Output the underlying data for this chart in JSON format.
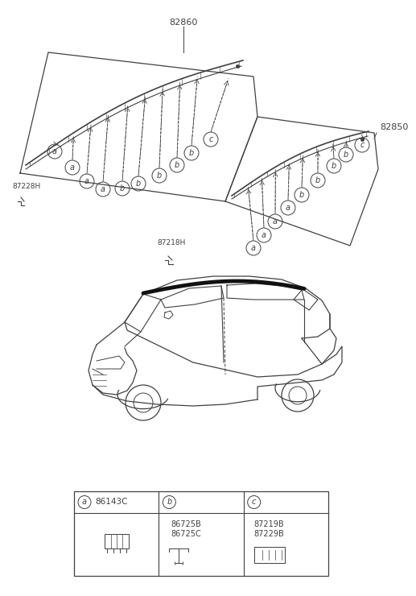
{
  "bg_color": "#ffffff",
  "lc": "#404040",
  "tc": "#404040",
  "part82860_label": "82860",
  "part82850_label": "82850",
  "part87228H_label": "87228H",
  "part87218H_label": "87218H",
  "legend_items": [
    {
      "key": "a",
      "code": "86143C"
    },
    {
      "key": "b",
      "code1": "86725B",
      "code2": "86725C"
    },
    {
      "key": "c",
      "code1": "87219B",
      "code2": "87229B"
    }
  ]
}
